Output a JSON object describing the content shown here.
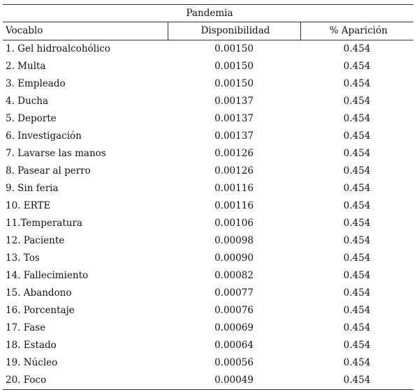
{
  "table": {
    "caption": "Pandemia",
    "headers": {
      "vocabulary": "Vocablo",
      "availability": "Disponibilidad",
      "appearance": "% Aparición"
    },
    "rows": [
      {
        "term": "1. Gel hidroalcohólico",
        "availability": "0.00150",
        "appearance": "0.454"
      },
      {
        "term": "2. Multa",
        "availability": "0.00150",
        "appearance": "0.454"
      },
      {
        "term": "3. Empleado",
        "availability": "0.00150",
        "appearance": "0.454"
      },
      {
        "term": "4. Ducha",
        "availability": "0.00137",
        "appearance": "0.454"
      },
      {
        "term": "5. Deporte",
        "availability": "0.00137",
        "appearance": "0.454"
      },
      {
        "term": "6. Investigación",
        "availability": "0.00137",
        "appearance": "0.454"
      },
      {
        "term": "7. Lavarse las manos",
        "availability": "0.00126",
        "appearance": "0.454"
      },
      {
        "term": "8. Pasear al perro",
        "availability": "0.00126",
        "appearance": "0.454"
      },
      {
        "term": "9. Sin feria",
        "availability": "0.00116",
        "appearance": "0.454"
      },
      {
        "term": "10. ERTE",
        "availability": "0.00116",
        "appearance": "0.454"
      },
      {
        "term": "11.Temperatura",
        "availability": "0.00106",
        "appearance": "0.454"
      },
      {
        "term": "12. Paciente",
        "availability": "0.00098",
        "appearance": "0.454"
      },
      {
        "term": "13. Tos",
        "availability": "0.00090",
        "appearance": "0.454"
      },
      {
        "term": "14. Fallecimiento",
        "availability": "0.00082",
        "appearance": "0.454"
      },
      {
        "term": "15. Abandono",
        "availability": "0.00077",
        "appearance": "0.454"
      },
      {
        "term": "16. Porcentaje",
        "availability": "0.00076",
        "appearance": "0.454"
      },
      {
        "term": "17. Fase",
        "availability": "0.00069",
        "appearance": "0.454"
      },
      {
        "term": "18. Estado",
        "availability": "0.00064",
        "appearance": "0.454"
      },
      {
        "term": "19. Núcleo",
        "availability": "0.00056",
        "appearance": "0.454"
      },
      {
        "term": "20. Foco",
        "availability": "0.00049",
        "appearance": "0.454"
      }
    ]
  }
}
